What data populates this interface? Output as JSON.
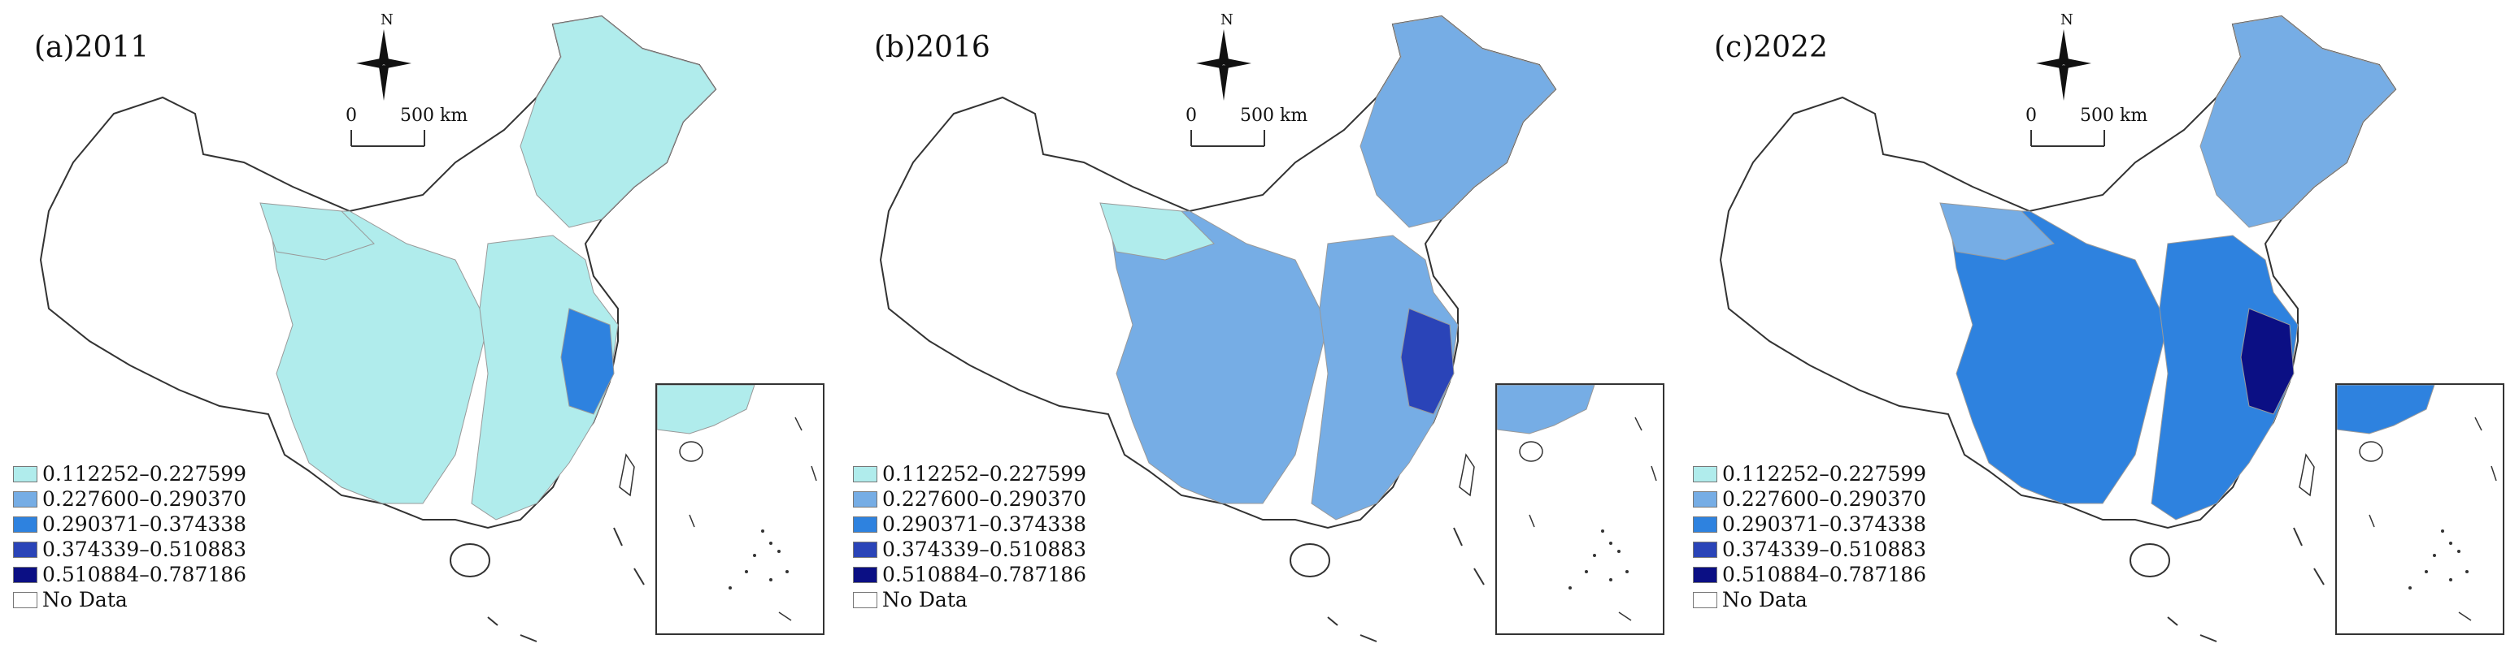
{
  "panels": [
    {
      "label": "(a)2011"
    },
    {
      "label": "(b)2016"
    },
    {
      "label": "(c)2022"
    }
  ],
  "compass": {
    "north_label": "N"
  },
  "scale": {
    "zero": "0",
    "distance": "500 km"
  },
  "legend": [
    {
      "label": "0.112252–0.227599",
      "color": "#b0ecec"
    },
    {
      "label": "0.227600–0.290370",
      "color": "#76ade5"
    },
    {
      "label": "0.290371–0.374338",
      "color": "#2e82df"
    },
    {
      "label": "0.374339–0.510883",
      "color": "#2a44b8"
    },
    {
      "label": "0.510884–0.787186",
      "color": "#0b0f84"
    },
    {
      "label": "No Data",
      "color": "#ffffff"
    }
  ]
}
